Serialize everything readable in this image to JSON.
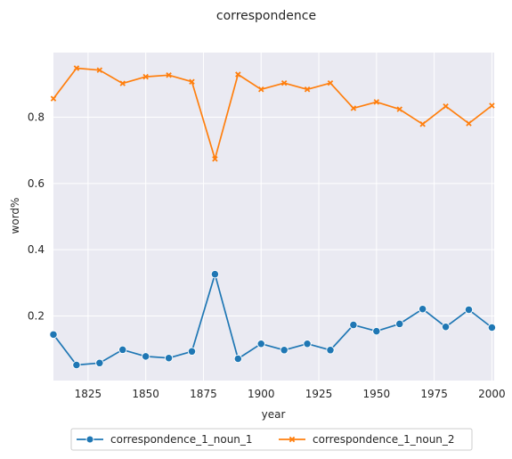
{
  "chart_data": {
    "type": "line",
    "title": "correspondence",
    "xlabel": "year",
    "ylabel": "word%",
    "xlim": [
      1810,
      2001
    ],
    "ylim": [
      0.005,
      0.995
    ],
    "x_ticks": [
      1825,
      1850,
      1875,
      1900,
      1925,
      1950,
      1975,
      2000
    ],
    "y_ticks": [
      0.2,
      0.4,
      0.6,
      0.8
    ],
    "x_tick_labels": [
      "1825",
      "1850",
      "1875",
      "1900",
      "1925",
      "1950",
      "1975",
      "2000"
    ],
    "y_tick_labels": [
      "0.2",
      "0.4",
      "0.6",
      "0.8"
    ],
    "grid": true,
    "legend_position": "bottom-center",
    "x": [
      1810,
      1820,
      1830,
      1840,
      1850,
      1860,
      1870,
      1880,
      1890,
      1900,
      1910,
      1920,
      1930,
      1940,
      1950,
      1960,
      1970,
      1980,
      1990,
      2000
    ],
    "series": [
      {
        "name": "correspondence_1_noun_1",
        "color": "#1f77b4",
        "marker": "circle",
        "values": [
          0.144,
          0.052,
          0.058,
          0.098,
          0.078,
          0.073,
          0.093,
          0.326,
          0.071,
          0.116,
          0.097,
          0.116,
          0.097,
          0.173,
          0.154,
          0.176,
          0.221,
          0.167,
          0.219,
          0.165
        ]
      },
      {
        "name": "correspondence_1_noun_2",
        "color": "#ff7f0e",
        "marker": "x",
        "values": [
          0.856,
          0.948,
          0.942,
          0.902,
          0.922,
          0.927,
          0.907,
          0.674,
          0.929,
          0.884,
          0.903,
          0.884,
          0.903,
          0.827,
          0.846,
          0.824,
          0.779,
          0.833,
          0.781,
          0.835
        ]
      }
    ]
  }
}
